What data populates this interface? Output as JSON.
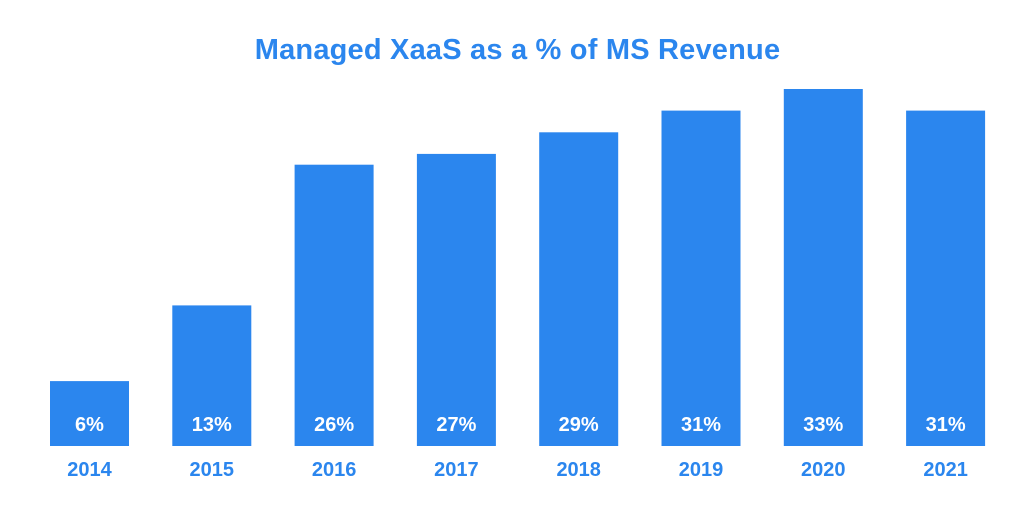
{
  "chart_data": {
    "type": "bar",
    "title": "Managed XaaS as a % of MS Revenue",
    "categories": [
      "2014",
      "2015",
      "2016",
      "2017",
      "2018",
      "2019",
      "2020",
      "2021"
    ],
    "values": [
      6,
      13,
      26,
      27,
      29,
      31,
      33,
      31
    ],
    "data_labels": [
      "6%",
      "13%",
      "26%",
      "27%",
      "29%",
      "31%",
      "33%",
      "31%"
    ],
    "xlabel": "",
    "ylabel": "",
    "ylim": [
      0,
      33
    ],
    "grid": false,
    "legend": "none",
    "colors": {
      "bar": "#2B86EE",
      "title": "#2B86EE",
      "tick": "#2B86EE",
      "bar_label": "#FFFFFF"
    }
  }
}
